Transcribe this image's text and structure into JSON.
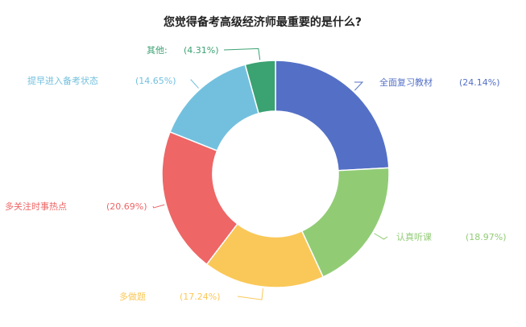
{
  "chart_data": {
    "type": "pie",
    "title": "您觉得备考高级经济师最重要的是什么?",
    "donut": true,
    "categories": [
      "全面复习教材",
      "认真听课",
      "多做题",
      "多关注时事热点",
      "提早进入备考状态",
      "其他:"
    ],
    "values": [
      24.14,
      18.97,
      17.24,
      20.69,
      14.65,
      4.31
    ],
    "value_labels": [
      "(24.14%)",
      "(18.97%)",
      "(17.24%)",
      "(20.69%)",
      "(14.65%)",
      "(4.31%)"
    ],
    "colors": [
      "#5470c6",
      "#91cc75",
      "#fac858",
      "#ee6666",
      "#73c0de",
      "#3ba272"
    ],
    "label_position": "outside with leader lines",
    "legend": "none"
  }
}
